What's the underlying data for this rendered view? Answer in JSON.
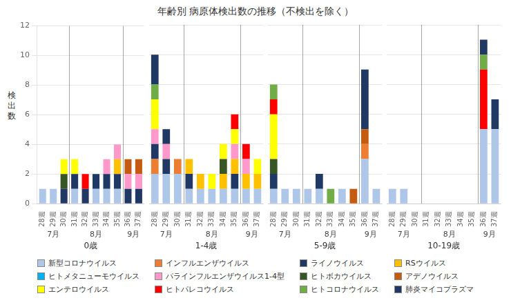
{
  "chart_data": [
    {
      "type": "bar",
      "title": "年齢別 病原体検出数の推移（不検出を除く）",
      "ylabel": "検\n出\n数",
      "xlabel": "0歳",
      "categories": [
        "28週",
        "29週",
        "30週",
        "31週",
        "32週",
        "33週",
        "34週",
        "35週",
        "36週",
        "37週"
      ],
      "series": [
        {
          "name": "新型コロナウイルス",
          "color": "#aec6e8",
          "values": [
            1,
            1,
            0,
            1,
            0,
            1,
            1,
            1,
            0,
            0
          ]
        },
        {
          "name": "インフルエンザウイルス",
          "color": "#ed7d31",
          "values": [
            0,
            0,
            0,
            0,
            0,
            0,
            0,
            0,
            0,
            0
          ]
        },
        {
          "name": "ライノウイルス",
          "color": "#1f3864",
          "values": [
            0,
            0,
            1,
            1,
            1,
            1,
            1,
            1,
            1,
            1
          ]
        },
        {
          "name": "RSウイルス",
          "color": "#ffc000",
          "values": [
            0,
            0,
            0,
            0,
            0,
            0,
            0,
            1,
            0,
            0
          ]
        },
        {
          "name": "ヒトメタニューモウイルス",
          "color": "#00b0f0",
          "values": [
            0,
            0,
            0,
            0,
            0,
            0,
            0,
            0,
            0,
            0
          ]
        },
        {
          "name": "パラインフルエンザウイルス1-4型",
          "color": "#ff99cc",
          "values": [
            0,
            0,
            0,
            0,
            0,
            0,
            1,
            1,
            1,
            1
          ]
        },
        {
          "name": "ヒトボカウイルス",
          "color": "#375623",
          "values": [
            0,
            0,
            1,
            0,
            0,
            0,
            0,
            0,
            0,
            0
          ]
        },
        {
          "name": "アデノウイルス",
          "color": "#c55a11",
          "values": [
            0,
            0,
            0,
            0,
            0,
            0,
            0,
            0,
            1,
            1
          ]
        },
        {
          "name": "エンテロウイルス",
          "color": "#ffff00",
          "values": [
            0,
            0,
            1,
            1,
            0,
            0,
            0,
            0,
            0,
            0
          ]
        },
        {
          "name": "ヒトパレコウイルス",
          "color": "#ff0000",
          "values": [
            0,
            0,
            0,
            0,
            1,
            0,
            0,
            0,
            0,
            0
          ]
        },
        {
          "name": "ヒトコロナウイルス",
          "color": "#70ad47",
          "values": [
            0,
            0,
            0,
            0,
            0,
            0,
            0,
            0,
            0,
            0
          ]
        },
        {
          "name": "肺炎マイコプラズマ",
          "color": "#1f3864",
          "values": [
            0,
            0,
            0,
            0,
            0,
            0,
            0,
            0,
            0,
            0
          ]
        }
      ],
      "annotations": [
        {
          "text": "7月",
          "from": "28週",
          "to": "30週"
        },
        {
          "text": "8月",
          "from": "31週",
          "to": "35週"
        },
        {
          "text": "9月",
          "from": "36週",
          "to": "37週"
        }
      ],
      "stacked": true,
      "ylim": [
        0,
        12
      ],
      "yticks": [
        0,
        2,
        4,
        6,
        8,
        10,
        12
      ],
      "grid": true,
      "legend": "bottom"
    },
    {
      "type": "bar",
      "xlabel": "1-4歳",
      "categories": [
        "28週",
        "29週",
        "30週",
        "31週",
        "32週",
        "33週",
        "34週",
        "35週",
        "36週",
        "37週"
      ],
      "series": [
        {
          "name": "新型コロナウイルス",
          "color": "#aec6e8",
          "values": [
            2,
            2,
            2,
            1,
            1,
            1,
            1,
            1,
            1,
            1
          ]
        },
        {
          "name": "インフルエンザウイルス",
          "color": "#ed7d31",
          "values": [
            1,
            0,
            1,
            0,
            0,
            0,
            0,
            0,
            0,
            0
          ]
        },
        {
          "name": "ライノウイルス",
          "color": "#1f3864",
          "values": [
            1,
            1,
            0,
            1,
            0,
            0,
            0,
            1,
            0,
            0
          ]
        },
        {
          "name": "RSウイルス",
          "color": "#ffc000",
          "values": [
            0,
            0,
            0,
            1,
            1,
            0,
            1,
            1,
            1,
            1
          ]
        },
        {
          "name": "ヒトメタニューモウイルス",
          "color": "#00b0f0",
          "values": [
            0,
            0,
            0,
            0,
            0,
            0,
            0,
            0,
            0,
            0
          ]
        },
        {
          "name": "パラインフルエンザウイルス1-4型",
          "color": "#ff99cc",
          "values": [
            1,
            1,
            0,
            0,
            0,
            0,
            0,
            1,
            1,
            0
          ]
        },
        {
          "name": "ヒトボカウイルス",
          "color": "#375623",
          "values": [
            0,
            0,
            0,
            0,
            0,
            0,
            1,
            0,
            0,
            0
          ]
        },
        {
          "name": "アデノウイルス",
          "color": "#c55a11",
          "values": [
            0,
            0,
            0,
            0,
            0,
            0,
            0,
            0,
            0,
            0
          ]
        },
        {
          "name": "エンテロウイルス",
          "color": "#ffff00",
          "values": [
            2,
            0,
            0,
            0,
            0,
            1,
            1,
            1,
            0,
            1
          ]
        },
        {
          "name": "ヒトパレコウイルス",
          "color": "#ff0000",
          "values": [
            0,
            0,
            0,
            0,
            0,
            0,
            0,
            1,
            1,
            0
          ]
        },
        {
          "name": "ヒトコロナウイルス",
          "color": "#70ad47",
          "values": [
            1,
            0,
            0,
            0,
            0,
            0,
            0,
            0,
            0,
            0
          ]
        },
        {
          "name": "肺炎マイコプラズマ",
          "color": "#1f3864",
          "values": [
            2,
            1,
            0,
            0,
            0,
            0,
            0,
            0,
            0,
            0
          ]
        }
      ],
      "annotations": [
        {
          "text": "7月",
          "from": "28週",
          "to": "30週"
        },
        {
          "text": "8月",
          "from": "31週",
          "to": "35週"
        },
        {
          "text": "9月",
          "from": "36週",
          "to": "37週"
        }
      ],
      "stacked": true,
      "ylim": [
        0,
        12
      ],
      "yticks": [
        0,
        2,
        4,
        6,
        8,
        10,
        12
      ],
      "grid": true,
      "tick_labels": "x"
    },
    {
      "type": "bar",
      "xlabel": "5-9歳",
      "categories": [
        "28週",
        "29週",
        "30週",
        "31週",
        "32週",
        "33週",
        "34週",
        "35週",
        "36週",
        "37週"
      ],
      "series": [
        {
          "name": "新型コロナウイルス",
          "color": "#aec6e8",
          "values": [
            1,
            1,
            1,
            1,
            1,
            0,
            1,
            0,
            3,
            1
          ]
        },
        {
          "name": "インフルエンザウイルス",
          "color": "#ed7d31",
          "values": [
            0,
            0,
            0,
            0,
            0,
            0,
            0,
            0,
            1,
            0
          ]
        },
        {
          "name": "ライノウイルス",
          "color": "#1f3864",
          "values": [
            1,
            0,
            0,
            0,
            0,
            0,
            0,
            0,
            0,
            0
          ]
        },
        {
          "name": "RSウイルス",
          "color": "#ffc000",
          "values": [
            0,
            0,
            0,
            0,
            0,
            0,
            0,
            0,
            0,
            0
          ]
        },
        {
          "name": "ヒトメタニューモウイルス",
          "color": "#00b0f0",
          "values": [
            0,
            0,
            0,
            0,
            0,
            0,
            0,
            0,
            0,
            0
          ]
        },
        {
          "name": "パラインフルエンザウイルス1-4型",
          "color": "#ff99cc",
          "values": [
            0,
            0,
            0,
            0,
            0,
            0,
            0,
            0,
            0,
            0
          ]
        },
        {
          "name": "ヒトボカウイルス",
          "color": "#375623",
          "values": [
            1,
            0,
            0,
            0,
            0,
            0,
            0,
            0,
            0,
            0
          ]
        },
        {
          "name": "アデノウイルス",
          "color": "#c55a11",
          "values": [
            0,
            0,
            0,
            0,
            0,
            0,
            0,
            1,
            1,
            0
          ]
        },
        {
          "name": "エンテロウイルス",
          "color": "#ffff00",
          "values": [
            3,
            0,
            0,
            0,
            0,
            0,
            0,
            0,
            0,
            0
          ]
        },
        {
          "name": "ヒトパレコウイルス",
          "color": "#ff0000",
          "values": [
            1,
            0,
            0,
            0,
            0,
            0,
            0,
            0,
            0,
            0
          ]
        },
        {
          "name": "ヒトコロナウイルス",
          "color": "#70ad47",
          "values": [
            1,
            0,
            0,
            0,
            0,
            1,
            0,
            0,
            0,
            0
          ]
        },
        {
          "name": "肺炎マイコプラズマ",
          "color": "#1f3864",
          "values": [
            0,
            0,
            0,
            0,
            1,
            0,
            0,
            0,
            4,
            0
          ]
        }
      ],
      "annotations": [
        {
          "text": "7月",
          "from": "28週",
          "to": "30週"
        },
        {
          "text": "8月",
          "from": "31週",
          "to": "35週"
        },
        {
          "text": "9月",
          "from": "36週",
          "to": "37週"
        }
      ],
      "stacked": true,
      "ylim": [
        0,
        12
      ],
      "yticks": [
        0,
        2,
        4,
        6,
        8,
        10,
        12
      ],
      "grid": true,
      "tick_labels": "x"
    },
    {
      "type": "bar",
      "xlabel": "10-19歳",
      "categories": [
        "28週",
        "29週",
        "30週",
        "31週",
        "32週",
        "33週",
        "34週",
        "35週",
        "36週",
        "37週"
      ],
      "series": [
        {
          "name": "新型コロナウイルス",
          "color": "#aec6e8",
          "values": [
            1,
            1,
            0,
            0,
            0,
            0,
            0,
            0,
            5,
            5
          ]
        },
        {
          "name": "インフルエンザウイルス",
          "color": "#ed7d31",
          "values": [
            0,
            0,
            0,
            0,
            0,
            0,
            0,
            0,
            0,
            0
          ]
        },
        {
          "name": "ライノウイルス",
          "color": "#1f3864",
          "values": [
            0,
            0,
            0,
            0,
            0,
            0,
            0,
            0,
            0,
            0
          ]
        },
        {
          "name": "RSウイルス",
          "color": "#ffc000",
          "values": [
            0,
            0,
            0,
            0,
            0,
            0,
            0,
            0,
            0,
            0
          ]
        },
        {
          "name": "ヒトメタニューモウイルス",
          "color": "#00b0f0",
          "values": [
            0,
            0,
            0,
            0,
            0,
            0,
            0,
            0,
            0,
            0
          ]
        },
        {
          "name": "パラインフルエンザウイルス1-4型",
          "color": "#ff99cc",
          "values": [
            0,
            0,
            0,
            0,
            0,
            0,
            0,
            0,
            0,
            0
          ]
        },
        {
          "name": "ヒトボカウイルス",
          "color": "#375623",
          "values": [
            0,
            0,
            0,
            0,
            0,
            0,
            0,
            0,
            0,
            0
          ]
        },
        {
          "name": "アデノウイルス",
          "color": "#c55a11",
          "values": [
            0,
            0,
            0,
            0,
            0,
            0,
            0,
            0,
            0,
            0
          ]
        },
        {
          "name": "エンテロウイルス",
          "color": "#ffff00",
          "values": [
            0,
            0,
            0,
            0,
            0,
            0,
            0,
            0,
            0,
            0
          ]
        },
        {
          "name": "ヒトパレコウイルス",
          "color": "#ff0000",
          "values": [
            0,
            0,
            0,
            0,
            0,
            0,
            0,
            0,
            4,
            0
          ]
        },
        {
          "name": "ヒトコロナウイルス",
          "color": "#70ad47",
          "values": [
            0,
            0,
            0,
            0,
            0,
            0,
            0,
            0,
            1,
            0
          ]
        },
        {
          "name": "肺炎マイコプラズマ",
          "color": "#1f3864",
          "values": [
            0,
            0,
            0,
            0,
            0,
            0,
            0,
            0,
            1,
            2
          ]
        }
      ],
      "annotations": [
        {
          "text": "7月",
          "from": "28週",
          "to": "30週"
        },
        {
          "text": "8月",
          "from": "31週",
          "to": "35週"
        },
        {
          "text": "9月",
          "from": "36週",
          "to": "37週"
        }
      ],
      "stacked": true,
      "ylim": [
        0,
        12
      ],
      "yticks": [
        0,
        2,
        4,
        6,
        8,
        10,
        12
      ],
      "grid": true,
      "tick_labels": "x"
    }
  ]
}
